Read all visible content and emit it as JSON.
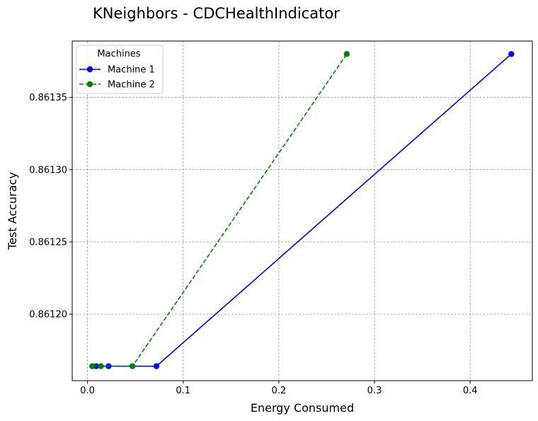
{
  "chart_data": {
    "type": "line",
    "title": "KNeighbors - CDCHealthIndicator",
    "xlabel": "Energy Consumed",
    "ylabel": "Test Accuracy",
    "xlim": [
      -0.016,
      0.465
    ],
    "ylim": [
      0.861154,
      0.861389
    ],
    "xticks": [
      0.0,
      0.1,
      0.2,
      0.3,
      0.4
    ],
    "xtick_labels": [
      "0.0",
      "0.1",
      "0.2",
      "0.3",
      "0.4"
    ],
    "yticks": [
      0.8612,
      0.86125,
      0.8613,
      0.86135
    ],
    "ytick_labels": [
      "0.86120",
      "0.86125",
      "0.86130",
      "0.86135"
    ],
    "grid": true,
    "legend": {
      "title": "Machines",
      "position": "top-left"
    },
    "series": [
      {
        "name": "Machine 1",
        "color": "#0000ff",
        "linestyle": "solid",
        "x": [
          0.005,
          0.009,
          0.022,
          0.072,
          0.443
        ],
        "y": [
          0.861164,
          0.861164,
          0.861164,
          0.861164,
          0.86138
        ]
      },
      {
        "name": "Machine 2",
        "color": "#008000",
        "linestyle": "dashed",
        "x": [
          0.005,
          0.014,
          0.047,
          0.271
        ],
        "y": [
          0.861164,
          0.861164,
          0.861164,
          0.86138
        ]
      }
    ]
  }
}
